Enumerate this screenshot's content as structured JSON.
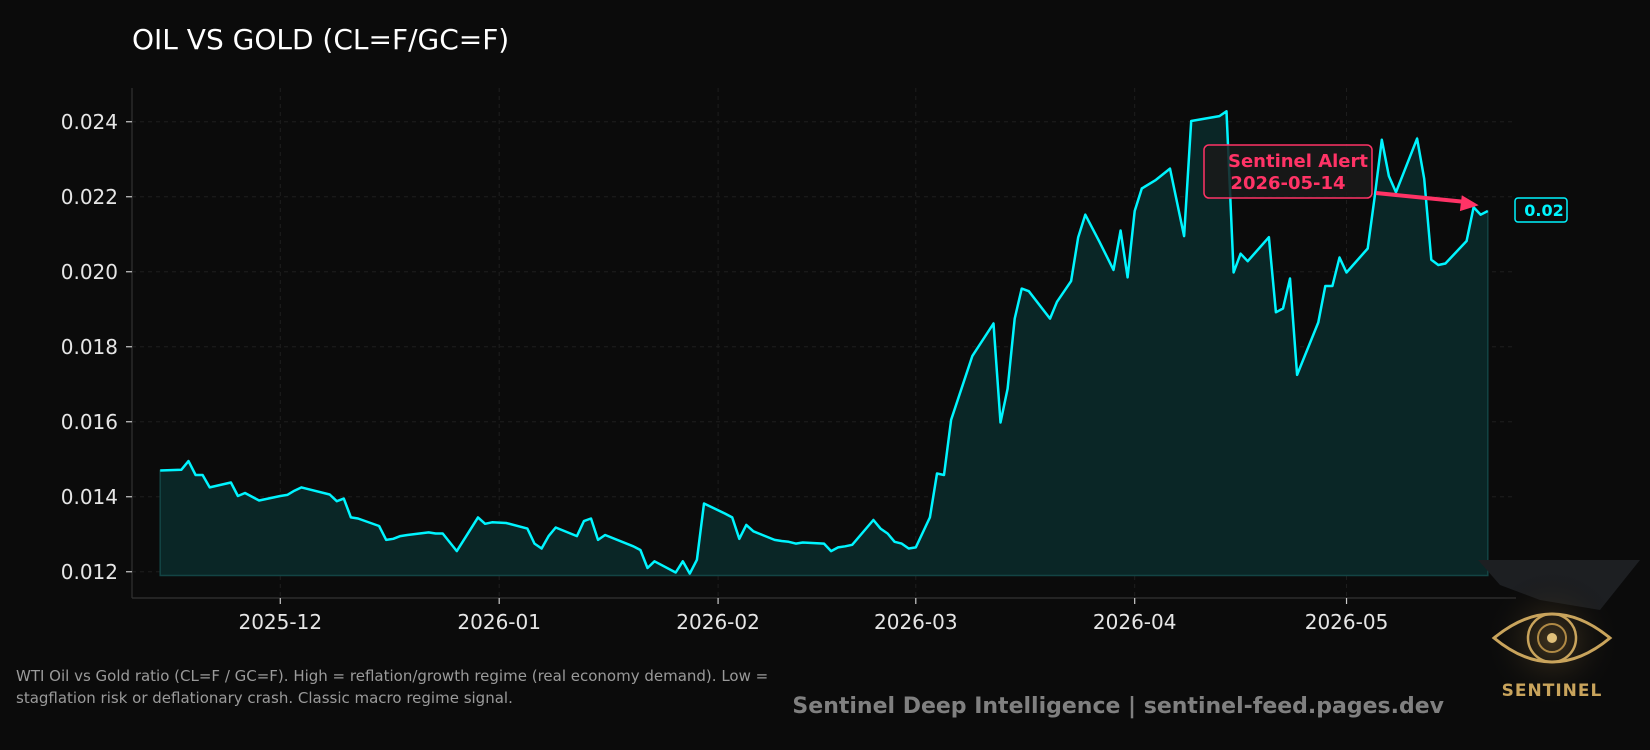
{
  "colors": {
    "background": "#0b0b0b",
    "line": "#00f5ff",
    "fill": "#0a2626",
    "alert": "#ff3366",
    "text": "#e6e6e6",
    "grid": "#1e1e1e",
    "logo": "#c9a45c"
  },
  "chart_data": {
    "type": "area",
    "title": "OIL VS GOLD (CL=F/GC=F)",
    "xlabel": "",
    "ylabel": "",
    "ylim": [
      0.0113,
      0.0249
    ],
    "xlim": [
      "2025-11-10",
      "2026-05-25"
    ],
    "grid": true,
    "x_ticks": [
      "2025-12-01",
      "2026-01-01",
      "2026-02-01",
      "2026-03-01",
      "2026-04-01",
      "2026-05-01"
    ],
    "x_tick_labels": [
      "2025-12",
      "2026-01",
      "2026-02",
      "2026-03",
      "2026-04",
      "2026-05"
    ],
    "y_ticks": [
      0.012,
      0.014,
      0.016,
      0.018,
      0.02,
      0.022,
      0.024
    ],
    "y_tick_labels": [
      "0.012",
      "0.014",
      "0.016",
      "0.018",
      "0.020",
      "0.022",
      "0.024"
    ],
    "series": [
      {
        "points": [
          [
            "2025-11-14",
            0.0147
          ],
          [
            "2025-11-17",
            0.01472
          ],
          [
            "2025-11-18",
            0.01495
          ],
          [
            "2025-11-19",
            0.01458
          ],
          [
            "2025-11-20",
            0.01458
          ],
          [
            "2025-11-21",
            0.01425
          ],
          [
            "2025-11-24",
            0.01438
          ],
          [
            "2025-11-25",
            0.01402
          ],
          [
            "2025-11-26",
            0.0141
          ],
          [
            "2025-11-28",
            0.0139
          ],
          [
            "2025-12-01",
            0.01402
          ],
          [
            "2025-12-02",
            0.01405
          ],
          [
            "2025-12-03",
            0.01416
          ],
          [
            "2025-12-04",
            0.01425
          ],
          [
            "2025-12-05",
            0.0142
          ],
          [
            "2025-12-08",
            0.01406
          ],
          [
            "2025-12-09",
            0.01388
          ],
          [
            "2025-12-10",
            0.01395
          ],
          [
            "2025-12-11",
            0.01345
          ],
          [
            "2025-12-12",
            0.01342
          ],
          [
            "2025-12-15",
            0.01322
          ],
          [
            "2025-12-16",
            0.01285
          ],
          [
            "2025-12-17",
            0.01288
          ],
          [
            "2025-12-18",
            0.01295
          ],
          [
            "2025-12-19",
            0.01298
          ],
          [
            "2025-12-22",
            0.01305
          ],
          [
            "2025-12-23",
            0.01302
          ],
          [
            "2025-12-24",
            0.01302
          ],
          [
            "2025-12-26",
            0.01255
          ],
          [
            "2025-12-29",
            0.01345
          ],
          [
            "2025-12-30",
            0.01328
          ],
          [
            "2025-12-31",
            0.01332
          ],
          [
            "2026-01-02",
            0.0133
          ],
          [
            "2026-01-05",
            0.01315
          ],
          [
            "2026-01-06",
            0.01275
          ],
          [
            "2026-01-07",
            0.01262
          ],
          [
            "2026-01-08",
            0.01295
          ],
          [
            "2026-01-09",
            0.01318
          ],
          [
            "2026-01-12",
            0.01295
          ],
          [
            "2026-01-13",
            0.01335
          ],
          [
            "2026-01-14",
            0.01342
          ],
          [
            "2026-01-15",
            0.01285
          ],
          [
            "2026-01-16",
            0.01298
          ],
          [
            "2026-01-20",
            0.01268
          ],
          [
            "2026-01-21",
            0.01258
          ],
          [
            "2026-01-22",
            0.0121
          ],
          [
            "2026-01-23",
            0.01228
          ],
          [
            "2026-01-26",
            0.01198
          ],
          [
            "2026-01-27",
            0.01228
          ],
          [
            "2026-01-28",
            0.01195
          ],
          [
            "2026-01-29",
            0.01232
          ],
          [
            "2026-01-30",
            0.01382
          ],
          [
            "2026-02-02",
            0.01355
          ],
          [
            "2026-02-03",
            0.01345
          ],
          [
            "2026-02-04",
            0.01288
          ],
          [
            "2026-02-05",
            0.01325
          ],
          [
            "2026-02-06",
            0.01308
          ],
          [
            "2026-02-09",
            0.01285
          ],
          [
            "2026-02-10",
            0.01282
          ],
          [
            "2026-02-11",
            0.0128
          ],
          [
            "2026-02-12",
            0.01275
          ],
          [
            "2026-02-13",
            0.01278
          ],
          [
            "2026-02-16",
            0.01275
          ],
          [
            "2026-02-17",
            0.01255
          ],
          [
            "2026-02-18",
            0.01265
          ],
          [
            "2026-02-19",
            0.01268
          ],
          [
            "2026-02-20",
            0.01272
          ],
          [
            "2026-02-23",
            0.01338
          ],
          [
            "2026-02-24",
            0.01315
          ],
          [
            "2026-02-25",
            0.01302
          ],
          [
            "2026-02-26",
            0.0128
          ],
          [
            "2026-02-27",
            0.01275
          ],
          [
            "2026-02-28",
            0.01262
          ],
          [
            "2026-03-01",
            0.01265
          ],
          [
            "2026-03-03",
            0.01345
          ],
          [
            "2026-03-04",
            0.01462
          ],
          [
            "2026-03-05",
            0.01458
          ],
          [
            "2026-03-06",
            0.01605
          ],
          [
            "2026-03-09",
            0.01775
          ],
          [
            "2026-03-12",
            0.01862
          ],
          [
            "2026-03-13",
            0.01598
          ],
          [
            "2026-03-14",
            0.01688
          ],
          [
            "2026-03-15",
            0.01875
          ],
          [
            "2026-03-16",
            0.01955
          ],
          [
            "2026-03-17",
            0.01948
          ],
          [
            "2026-03-20",
            0.01875
          ],
          [
            "2026-03-21",
            0.0192
          ],
          [
            "2026-03-23",
            0.01975
          ],
          [
            "2026-03-24",
            0.02092
          ],
          [
            "2026-03-25",
            0.02152
          ],
          [
            "2026-03-27",
            0.0208
          ],
          [
            "2026-03-29",
            0.02005
          ],
          [
            "2026-03-30",
            0.0211
          ],
          [
            "2026-03-31",
            0.01985
          ],
          [
            "2026-04-01",
            0.02162
          ],
          [
            "2026-04-02",
            0.02222
          ],
          [
            "2026-04-04",
            0.02245
          ],
          [
            "2026-04-06",
            0.02275
          ],
          [
            "2026-04-08",
            0.02095
          ],
          [
            "2026-04-09",
            0.02402
          ],
          [
            "2026-04-13",
            0.02415
          ],
          [
            "2026-04-14",
            0.02428
          ],
          [
            "2026-04-15",
            0.01998
          ],
          [
            "2026-04-16",
            0.02048
          ],
          [
            "2026-04-17",
            0.02028
          ],
          [
            "2026-04-20",
            0.02092
          ],
          [
            "2026-04-21",
            0.01892
          ],
          [
            "2026-04-22",
            0.01902
          ],
          [
            "2026-04-23",
            0.01982
          ],
          [
            "2026-04-24",
            0.01725
          ],
          [
            "2026-04-27",
            0.01865
          ],
          [
            "2026-04-28",
            0.01962
          ],
          [
            "2026-04-29",
            0.01962
          ],
          [
            "2026-04-30",
            0.02038
          ],
          [
            "2026-05-01",
            0.01998
          ],
          [
            "2026-05-04",
            0.02062
          ],
          [
            "2026-05-05",
            0.02202
          ],
          [
            "2026-05-06",
            0.02352
          ],
          [
            "2026-05-07",
            0.02255
          ],
          [
            "2026-05-08",
            0.02212
          ],
          [
            "2026-05-11",
            0.02355
          ],
          [
            "2026-05-12",
            0.02248
          ],
          [
            "2026-05-13",
            0.02032
          ],
          [
            "2026-05-14",
            0.02018
          ],
          [
            "2026-05-15",
            0.02022
          ],
          [
            "2026-05-18",
            0.02082
          ],
          [
            "2026-05-19",
            0.02172
          ],
          [
            "2026-05-20",
            0.02152
          ],
          [
            "2026-05-21",
            0.02162
          ]
        ]
      }
    ],
    "baseline": 0.0119,
    "annotations": [
      {
        "kind": "alert",
        "lines": [
          "Sentinel Alert",
          "2026-05-14"
        ],
        "target": [
          "2026-05-20",
          0.02172
        ]
      },
      {
        "kind": "last_value",
        "text": "0.02",
        "value": 0.02162
      }
    ]
  },
  "footer": {
    "caption_line1": "WTI Oil vs Gold ratio (CL=F / GC=F). High = reflation/growth regime (real economy demand). Low =",
    "caption_line2": "stagflation risk or deflationary crash. Classic macro regime signal.",
    "credit": "Sentinel Deep Intelligence  |  sentinel-feed.pages.dev"
  },
  "logo": {
    "text": "SENTINEL",
    "icon": "eye-icon"
  }
}
